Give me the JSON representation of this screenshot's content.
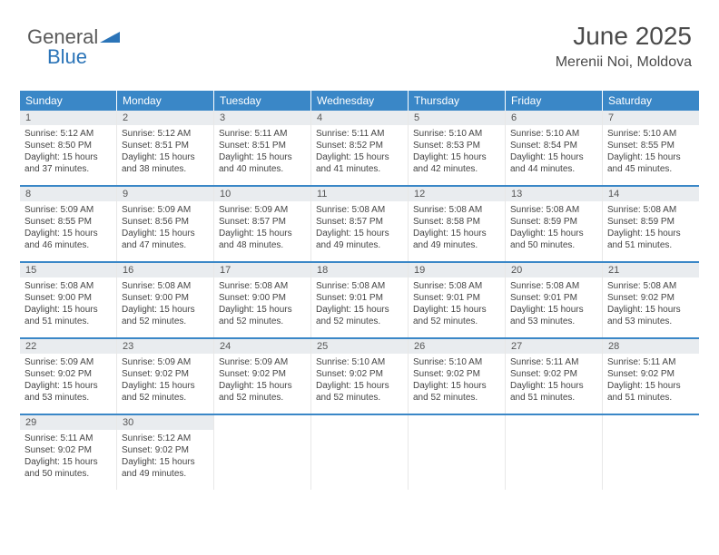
{
  "logo": {
    "word1": "General",
    "word2": "Blue"
  },
  "header": {
    "title": "June 2025",
    "subtitle": "Merenii Noi, Moldova"
  },
  "colors": {
    "header_bg": "#3a87c7",
    "header_text": "#ffffff",
    "daynum_bg": "#e9ecef",
    "row_divider": "#3a87c7",
    "body_text": "#444444",
    "logo_gray": "#5a5a5a",
    "logo_blue": "#2b74b8"
  },
  "weekdays": [
    "Sunday",
    "Monday",
    "Tuesday",
    "Wednesday",
    "Thursday",
    "Friday",
    "Saturday"
  ],
  "weeks": [
    [
      {
        "n": "1",
        "sr": "Sunrise: 5:12 AM",
        "ss": "Sunset: 8:50 PM",
        "d1": "Daylight: 15 hours",
        "d2": "and 37 minutes."
      },
      {
        "n": "2",
        "sr": "Sunrise: 5:12 AM",
        "ss": "Sunset: 8:51 PM",
        "d1": "Daylight: 15 hours",
        "d2": "and 38 minutes."
      },
      {
        "n": "3",
        "sr": "Sunrise: 5:11 AM",
        "ss": "Sunset: 8:51 PM",
        "d1": "Daylight: 15 hours",
        "d2": "and 40 minutes."
      },
      {
        "n": "4",
        "sr": "Sunrise: 5:11 AM",
        "ss": "Sunset: 8:52 PM",
        "d1": "Daylight: 15 hours",
        "d2": "and 41 minutes."
      },
      {
        "n": "5",
        "sr": "Sunrise: 5:10 AM",
        "ss": "Sunset: 8:53 PM",
        "d1": "Daylight: 15 hours",
        "d2": "and 42 minutes."
      },
      {
        "n": "6",
        "sr": "Sunrise: 5:10 AM",
        "ss": "Sunset: 8:54 PM",
        "d1": "Daylight: 15 hours",
        "d2": "and 44 minutes."
      },
      {
        "n": "7",
        "sr": "Sunrise: 5:10 AM",
        "ss": "Sunset: 8:55 PM",
        "d1": "Daylight: 15 hours",
        "d2": "and 45 minutes."
      }
    ],
    [
      {
        "n": "8",
        "sr": "Sunrise: 5:09 AM",
        "ss": "Sunset: 8:55 PM",
        "d1": "Daylight: 15 hours",
        "d2": "and 46 minutes."
      },
      {
        "n": "9",
        "sr": "Sunrise: 5:09 AM",
        "ss": "Sunset: 8:56 PM",
        "d1": "Daylight: 15 hours",
        "d2": "and 47 minutes."
      },
      {
        "n": "10",
        "sr": "Sunrise: 5:09 AM",
        "ss": "Sunset: 8:57 PM",
        "d1": "Daylight: 15 hours",
        "d2": "and 48 minutes."
      },
      {
        "n": "11",
        "sr": "Sunrise: 5:08 AM",
        "ss": "Sunset: 8:57 PM",
        "d1": "Daylight: 15 hours",
        "d2": "and 49 minutes."
      },
      {
        "n": "12",
        "sr": "Sunrise: 5:08 AM",
        "ss": "Sunset: 8:58 PM",
        "d1": "Daylight: 15 hours",
        "d2": "and 49 minutes."
      },
      {
        "n": "13",
        "sr": "Sunrise: 5:08 AM",
        "ss": "Sunset: 8:59 PM",
        "d1": "Daylight: 15 hours",
        "d2": "and 50 minutes."
      },
      {
        "n": "14",
        "sr": "Sunrise: 5:08 AM",
        "ss": "Sunset: 8:59 PM",
        "d1": "Daylight: 15 hours",
        "d2": "and 51 minutes."
      }
    ],
    [
      {
        "n": "15",
        "sr": "Sunrise: 5:08 AM",
        "ss": "Sunset: 9:00 PM",
        "d1": "Daylight: 15 hours",
        "d2": "and 51 minutes."
      },
      {
        "n": "16",
        "sr": "Sunrise: 5:08 AM",
        "ss": "Sunset: 9:00 PM",
        "d1": "Daylight: 15 hours",
        "d2": "and 52 minutes."
      },
      {
        "n": "17",
        "sr": "Sunrise: 5:08 AM",
        "ss": "Sunset: 9:00 PM",
        "d1": "Daylight: 15 hours",
        "d2": "and 52 minutes."
      },
      {
        "n": "18",
        "sr": "Sunrise: 5:08 AM",
        "ss": "Sunset: 9:01 PM",
        "d1": "Daylight: 15 hours",
        "d2": "and 52 minutes."
      },
      {
        "n": "19",
        "sr": "Sunrise: 5:08 AM",
        "ss": "Sunset: 9:01 PM",
        "d1": "Daylight: 15 hours",
        "d2": "and 52 minutes."
      },
      {
        "n": "20",
        "sr": "Sunrise: 5:08 AM",
        "ss": "Sunset: 9:01 PM",
        "d1": "Daylight: 15 hours",
        "d2": "and 53 minutes."
      },
      {
        "n": "21",
        "sr": "Sunrise: 5:08 AM",
        "ss": "Sunset: 9:02 PM",
        "d1": "Daylight: 15 hours",
        "d2": "and 53 minutes."
      }
    ],
    [
      {
        "n": "22",
        "sr": "Sunrise: 5:09 AM",
        "ss": "Sunset: 9:02 PM",
        "d1": "Daylight: 15 hours",
        "d2": "and 53 minutes."
      },
      {
        "n": "23",
        "sr": "Sunrise: 5:09 AM",
        "ss": "Sunset: 9:02 PM",
        "d1": "Daylight: 15 hours",
        "d2": "and 52 minutes."
      },
      {
        "n": "24",
        "sr": "Sunrise: 5:09 AM",
        "ss": "Sunset: 9:02 PM",
        "d1": "Daylight: 15 hours",
        "d2": "and 52 minutes."
      },
      {
        "n": "25",
        "sr": "Sunrise: 5:10 AM",
        "ss": "Sunset: 9:02 PM",
        "d1": "Daylight: 15 hours",
        "d2": "and 52 minutes."
      },
      {
        "n": "26",
        "sr": "Sunrise: 5:10 AM",
        "ss": "Sunset: 9:02 PM",
        "d1": "Daylight: 15 hours",
        "d2": "and 52 minutes."
      },
      {
        "n": "27",
        "sr": "Sunrise: 5:11 AM",
        "ss": "Sunset: 9:02 PM",
        "d1": "Daylight: 15 hours",
        "d2": "and 51 minutes."
      },
      {
        "n": "28",
        "sr": "Sunrise: 5:11 AM",
        "ss": "Sunset: 9:02 PM",
        "d1": "Daylight: 15 hours",
        "d2": "and 51 minutes."
      }
    ],
    [
      {
        "n": "29",
        "sr": "Sunrise: 5:11 AM",
        "ss": "Sunset: 9:02 PM",
        "d1": "Daylight: 15 hours",
        "d2": "and 50 minutes."
      },
      {
        "n": "30",
        "sr": "Sunrise: 5:12 AM",
        "ss": "Sunset: 9:02 PM",
        "d1": "Daylight: 15 hours",
        "d2": "and 49 minutes."
      },
      null,
      null,
      null,
      null,
      null
    ]
  ]
}
